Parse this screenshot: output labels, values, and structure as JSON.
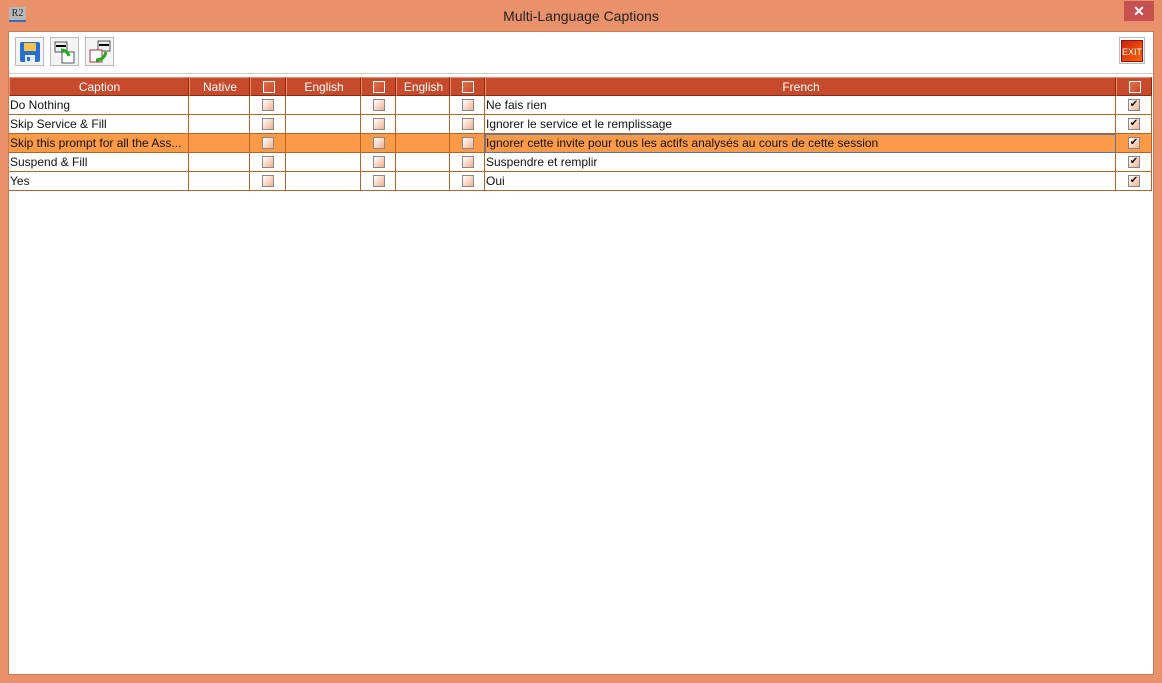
{
  "window": {
    "title": "Multi-Language Captions",
    "app_icon": "R2",
    "close": "✕"
  },
  "toolbar": {
    "save": "save-icon",
    "import": "import-icon",
    "export": "export-icon",
    "exit_label": "EXIT"
  },
  "table": {
    "headers": [
      "Caption",
      "Native",
      "",
      "English",
      "",
      "English",
      "",
      "French",
      ""
    ],
    "rows": [
      {
        "caption": "Do Nothing",
        "native": "",
        "c1": false,
        "english1": "",
        "c2": false,
        "english2": "",
        "c3": false,
        "french": "Ne fais rien",
        "c4": true
      },
      {
        "caption": "Skip Service & Fill",
        "native": "",
        "c1": false,
        "english1": "",
        "c2": false,
        "english2": "",
        "c3": false,
        "french": "Ignorer le service et le remplissage",
        "c4": true
      },
      {
        "caption": "Skip this prompt for all the Ass...",
        "native": "",
        "c1": false,
        "english1": "",
        "c2": false,
        "english2": "",
        "c3": false,
        "french": "Ignorer cette invite pour tous les actifs analysés au cours de cette session",
        "c4": true,
        "selected": true
      },
      {
        "caption": "Suspend & Fill",
        "native": "",
        "c1": false,
        "english1": "",
        "c2": false,
        "english2": "",
        "c3": false,
        "french": "Suspendre et remplir",
        "c4": true
      },
      {
        "caption": "Yes",
        "native": "",
        "c1": false,
        "english1": "",
        "c2": false,
        "english2": "",
        "c3": false,
        "french": "Oui",
        "c4": true
      }
    ]
  },
  "colors": {
    "header": "#c54b2c",
    "selected_row": "#fd9a48",
    "frame": "#e9916a"
  }
}
